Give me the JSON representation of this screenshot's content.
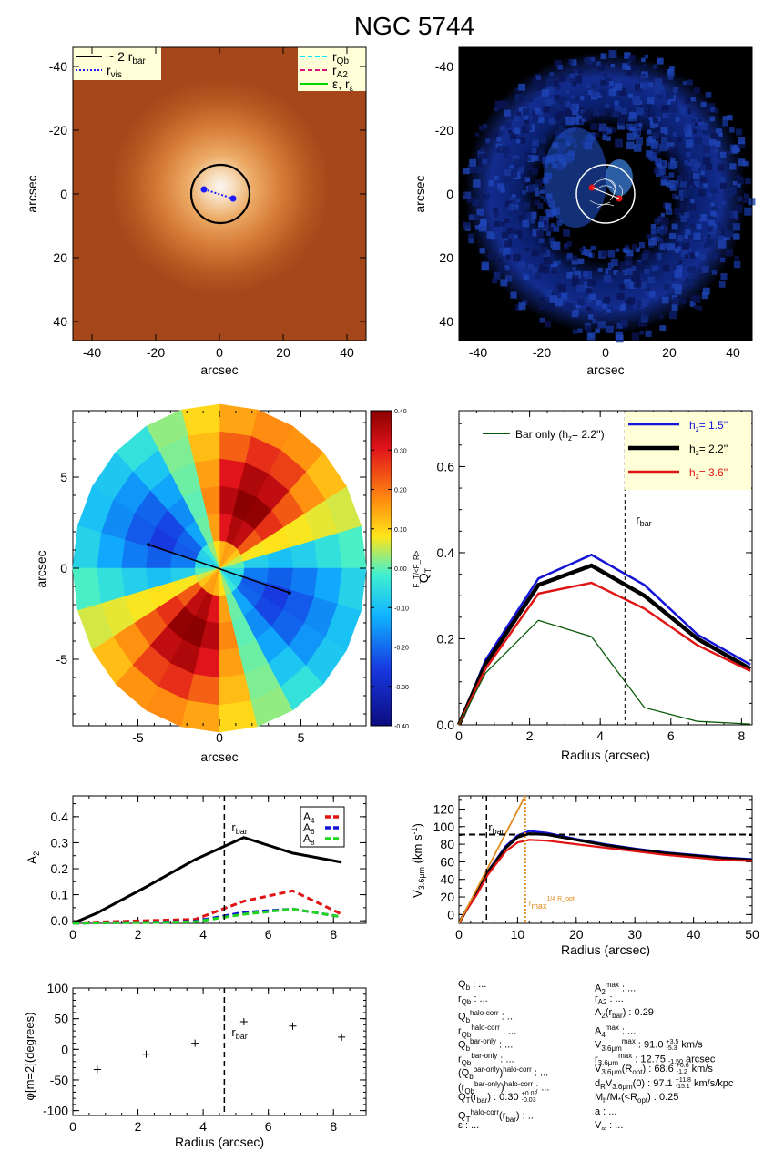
{
  "title": "NGC 5744",
  "colors": {
    "orange_bg": "#a5471a",
    "blue_bg": "#000000",
    "series_blue": "#1414d9",
    "series_black": "#000000",
    "series_red": "#e01414",
    "series_green": "#0a5a0a",
    "dash_cyan": "#00e5ff",
    "dash_magenta": "#e0127f",
    "line_green": "#00d600",
    "legend_bg": "#ffffd8",
    "orange_line": "#e08a1e"
  },
  "panel_images": {
    "xlabel": "arcsec",
    "ylabel": "arcsec",
    "ticks": [
      "-40",
      "-20",
      "0",
      "20",
      "40"
    ],
    "legend_left": {
      "bar": "~ 2 r",
      "bar_sub": "bar",
      "vis": "r",
      "vis_sub": "vis"
    },
    "legend_right": {
      "qb": "r",
      "qb_sub": "Qb",
      "a2": "r",
      "a2_sub": "A2",
      "eps": "ε, r",
      "eps_sub": "ε"
    }
  },
  "panel_map": {
    "xlabel": "arcsec",
    "ylabel": "arcsec",
    "xticks": [
      "-5",
      "0",
      "5"
    ],
    "yticks": [
      "5",
      "0",
      "-5"
    ],
    "colorbar_label": "F_T/<F_R>",
    "colorbar_ticks": [
      "0.40",
      "0.30",
      "0.20",
      "0.10",
      "0.00",
      "-0.10",
      "-0.20",
      "-0.30",
      "-0.40"
    ]
  },
  "chart_data": [
    {
      "type": "line",
      "panel": "QT",
      "xlabel": "Radius (arcsec)",
      "ylabel": "Q_T",
      "xlim": [
        0,
        8.3
      ],
      "ylim": [
        0,
        0.73
      ],
      "xticks": [
        "0",
        "2",
        "4",
        "6",
        "8"
      ],
      "yticks": [
        "0.0",
        "0.2",
        "0.4",
        "0.6"
      ],
      "vline": {
        "x": 4.7,
        "label": "r",
        "label_sub": "bar"
      },
      "series": [
        {
          "name": "h_z= 1.5''",
          "color": "#1414d9",
          "x": [
            0,
            0.75,
            2.25,
            3.75,
            5.25,
            6.75,
            8.25
          ],
          "y": [
            0.0,
            0.15,
            0.34,
            0.395,
            0.325,
            0.21,
            0.14
          ]
        },
        {
          "name": "h_z= 2.2''",
          "color": "#000000",
          "x": [
            0,
            0.75,
            2.25,
            3.75,
            5.25,
            6.75,
            8.25
          ],
          "y": [
            0.0,
            0.14,
            0.325,
            0.37,
            0.3,
            0.2,
            0.13
          ]
        },
        {
          "name": "h_z= 3.6''",
          "color": "#e01414",
          "x": [
            0,
            0.75,
            2.25,
            3.75,
            5.25,
            6.75,
            8.25
          ],
          "y": [
            0.0,
            0.13,
            0.305,
            0.33,
            0.27,
            0.185,
            0.125
          ]
        },
        {
          "name": "Bar only (h_z= 2.2'')",
          "color": "#0a5a0a",
          "x": [
            0,
            0.75,
            2.25,
            3.75,
            5.25,
            6.75,
            8.25
          ],
          "y": [
            0.0,
            0.12,
            0.243,
            0.205,
            0.04,
            0.008,
            0.002
          ]
        }
      ],
      "legend": {
        "box_items": [
          {
            "label": "h",
            "sub": "z",
            "val": "=   1.5''",
            "color": "#1414d9"
          },
          {
            "label": "h",
            "sub": "z",
            "val": "=   2.2''",
            "color": "#000000"
          },
          {
            "label": "h",
            "sub": "z",
            "val": "=   3.6''",
            "color": "#e01414"
          }
        ],
        "bar_only": {
          "label": "Bar only (h",
          "sub": "z",
          "val": "=   2.2'')"
        }
      }
    },
    {
      "type": "line",
      "panel": "A2",
      "xlabel": "",
      "ylabel": "A_2",
      "xlim": [
        0,
        9.0
      ],
      "ylim": [
        -0.01,
        0.48
      ],
      "xticks": [
        "0",
        "2",
        "4",
        "6",
        "8"
      ],
      "yticks": [
        "0.0",
        "0.1",
        "0.2",
        "0.3",
        "0.4"
      ],
      "vline": {
        "x": 4.65,
        "label": "r",
        "label_sub": "bar"
      },
      "series": [
        {
          "name": "A_2",
          "color": "#000000",
          "x": [
            0,
            0.75,
            2.25,
            3.75,
            5.25,
            6.75,
            8.25
          ],
          "y": [
            -0.01,
            0.03,
            0.13,
            0.235,
            0.32,
            0.26,
            0.225
          ]
        },
        {
          "name": "A_4",
          "color": "#e01414",
          "x": [
            0,
            0.75,
            2.25,
            3.75,
            5.25,
            6.75,
            8.25
          ],
          "y": [
            -0.01,
            -0.005,
            0.0,
            0.005,
            0.075,
            0.115,
            0.025
          ]
        },
        {
          "name": "A_6",
          "color": "#1414d9",
          "x": [
            0,
            0.75,
            2.25,
            3.75,
            5.25,
            6.75,
            8.25
          ],
          "y": [
            -0.01,
            -0.008,
            -0.006,
            -0.002,
            0.032,
            0.045,
            0.015
          ]
        },
        {
          "name": "A_8",
          "color": "#1fd61f",
          "x": [
            0,
            0.75,
            2.25,
            3.75,
            5.25,
            6.75,
            8.25
          ],
          "y": [
            -0.01,
            -0.008,
            -0.007,
            -0.004,
            0.025,
            0.045,
            0.015
          ]
        }
      ],
      "legend": [
        {
          "label": "A",
          "sub": "4",
          "color": "#e01414"
        },
        {
          "label": "A",
          "sub": "6",
          "color": "#1414d9"
        },
        {
          "label": "A",
          "sub": "8",
          "color": "#1fd61f"
        }
      ]
    },
    {
      "type": "line",
      "panel": "V",
      "xlabel": "Radius (arcsec)",
      "ylabel": "V_3.6μm (km s^-1)",
      "xlim": [
        0,
        50
      ],
      "ylim": [
        -10,
        135
      ],
      "xticks": [
        "0",
        "10",
        "20",
        "30",
        "40",
        "50"
      ],
      "yticks": [
        "0",
        "20",
        "40",
        "60",
        "80",
        "100",
        "120"
      ],
      "vline": {
        "x": 4.7,
        "label": "r",
        "label_sub": "bar"
      },
      "hline": {
        "y": 91
      },
      "rmax_line": {
        "x": 11.3,
        "label": "r",
        "label_sub": "max",
        "label_sup": "1/4 R_opt"
      },
      "series": [
        {
          "name": "blue",
          "color": "#1414d9",
          "x": [
            0,
            1,
            3,
            5,
            8,
            10,
            12,
            15,
            20,
            25,
            30,
            35,
            40,
            45,
            50
          ],
          "y": [
            -10,
            2,
            25,
            50,
            78,
            90,
            95,
            93,
            86,
            80,
            75,
            71,
            68,
            65,
            63
          ]
        },
        {
          "name": "black",
          "color": "#000000",
          "x": [
            0,
            1,
            3,
            5,
            8,
            10,
            12,
            15,
            20,
            25,
            30,
            35,
            40,
            45,
            50
          ],
          "y": [
            -10,
            2,
            24,
            49,
            76,
            88,
            92,
            91,
            85,
            79,
            74,
            70,
            67,
            64,
            62
          ]
        },
        {
          "name": "red",
          "color": "#e01414",
          "x": [
            0,
            1,
            3,
            5,
            8,
            10,
            12,
            15,
            20,
            25,
            30,
            35,
            40,
            45,
            50
          ],
          "y": [
            -10,
            2,
            22,
            46,
            72,
            82,
            85,
            84,
            80,
            76,
            72,
            68,
            65,
            62,
            61
          ]
        },
        {
          "name": "orange",
          "color": "#e08a1e",
          "x": [
            0,
            11.3
          ],
          "y": [
            -10,
            135
          ]
        }
      ]
    },
    {
      "type": "scatter",
      "panel": "phase",
      "xlabel": "Radius (arcsec)",
      "ylabel": "φ[m=2](degrees)",
      "xlim": [
        0,
        9.0
      ],
      "ylim": [
        -108,
        100
      ],
      "xticks": [
        "0",
        "2",
        "4",
        "6",
        "8"
      ],
      "yticks": [
        "100",
        "50",
        "0",
        "-50",
        "-100"
      ],
      "vline": {
        "x": 4.65,
        "label": "r",
        "label_sub": "bar"
      },
      "x": [
        0.75,
        2.25,
        3.75,
        5.25,
        6.75,
        8.25
      ],
      "y": [
        -33,
        -8,
        10,
        45,
        38,
        20
      ]
    }
  ],
  "params_left": [
    [
      "Q",
      "b",
      "",
      " : ..."
    ],
    [
      "r",
      "Qb",
      "",
      " : ..."
    ],
    [
      "Q",
      "b",
      "halo-corr",
      " : ..."
    ],
    [
      "r",
      "Qb",
      "halo-corr",
      " : ..."
    ],
    [
      "Q",
      "b",
      "bar-only",
      " : ..."
    ],
    [
      "r",
      "Qb",
      "bar-only",
      " : ..."
    ],
    [
      "(Q",
      "b",
      "bar-only",
      ")",
      "halo-corr",
      " : ..."
    ],
    [
      "(r",
      "Qb",
      "bar-only",
      ")",
      "halo-corr",
      " : ..."
    ],
    [
      "Q",
      "T",
      "",
      "(r",
      "bar",
      ")  :  0.30 ",
      "+0.02",
      "-0.03"
    ],
    [
      "Q",
      "T",
      "halo-corr",
      "(r",
      "bar",
      ") : ..."
    ],
    [
      "ε : ..."
    ]
  ],
  "params_right": [
    [
      "A",
      "2",
      "max",
      " : ..."
    ],
    [
      "r",
      "A2",
      "",
      " : ..."
    ],
    [
      "A",
      "2",
      "",
      "(r",
      "bar",
      ")  :  0.29"
    ],
    [
      "A",
      "4",
      "max",
      " : ..."
    ],
    [
      "V",
      "3.6μm",
      "max",
      "  :  91.0 ",
      "+3.5",
      "-5.3",
      " km/s"
    ],
    [
      "r",
      "3.6μm",
      "max",
      "  :  12.75 ",
      "",
      "-1.50",
      " arcsec"
    ],
    [
      "V",
      "3.6μm",
      "",
      "(R",
      "opt",
      ")  :  68.6 ",
      "+0.6",
      "-1.2",
      " km/s"
    ],
    [
      "d",
      "R",
      "",
      "V",
      "3.6μm",
      "(0)  :  97.1 ",
      "+11.8",
      "-15.1",
      " km/s/kpc"
    ],
    [
      "M",
      "h",
      "",
      "/M",
      "*",
      "(<R",
      "opt",
      ")  :  0.25"
    ],
    [
      "a : ..."
    ],
    [
      "V",
      "∞",
      "",
      " : ..."
    ]
  ]
}
